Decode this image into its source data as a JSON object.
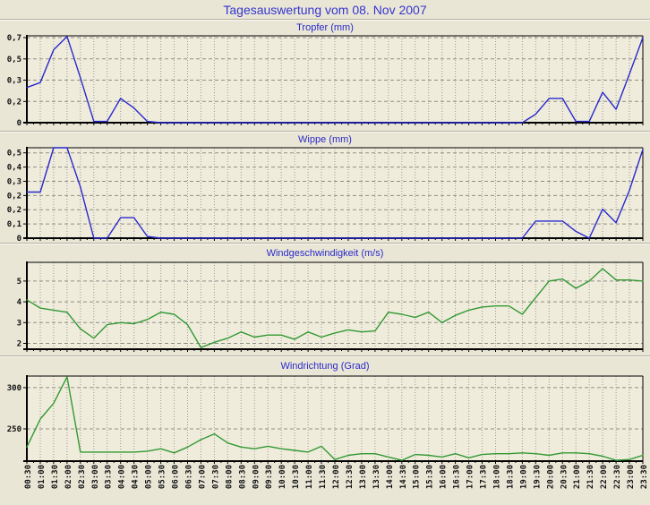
{
  "page_title": "Tagesauswertung vom 08. Nov 2007",
  "x_categories": [
    "00:30",
    "01:00",
    "01:30",
    "02:00",
    "02:30",
    "03:00",
    "03:30",
    "04:00",
    "04:30",
    "05:00",
    "05:30",
    "06:00",
    "06:30",
    "07:00",
    "07:30",
    "08:00",
    "08:30",
    "09:00",
    "09:30",
    "10:00",
    "10:30",
    "11:00",
    "11:30",
    "12:00",
    "12:30",
    "13:00",
    "13:30",
    "14:00",
    "14:30",
    "15:00",
    "15:30",
    "16:00",
    "16:30",
    "17:00",
    "17:30",
    "18:00",
    "18:30",
    "19:00",
    "19:30",
    "20:00",
    "20:30",
    "21:00",
    "21:30",
    "22:00",
    "22:30",
    "23:00",
    "23:30"
  ],
  "chart_data": [
    {
      "type": "line",
      "title": "Tropfer (mm)",
      "color": "#2929cc",
      "grid": true,
      "y_min": 0,
      "y_max": 0.715,
      "y_ticks": [
        {
          "v": 0.7,
          "label": "0,7"
        },
        {
          "v": 0.525,
          "label": "0,5"
        },
        {
          "v": 0.35,
          "label": "0,3"
        },
        {
          "v": 0.175,
          "label": "0,2"
        },
        {
          "v": 0,
          "label": "0"
        }
      ],
      "values": [
        0.29,
        0.33,
        0.6,
        0.71,
        0.37,
        0.01,
        0.01,
        0.2,
        0.12,
        0.01,
        0,
        0,
        0,
        0,
        0,
        0,
        0,
        0,
        0,
        0,
        0,
        0,
        0,
        0,
        0,
        0,
        0,
        0,
        0,
        0,
        0,
        0,
        0,
        0,
        0,
        0,
        0,
        0,
        0.07,
        0.2,
        0.2,
        0.01,
        0.01,
        0.25,
        0.11,
        0.4,
        0.7
      ]
    },
    {
      "type": "line",
      "title": "Wippe (mm)",
      "color": "#2929cc",
      "grid": true,
      "y_min": 0,
      "y_max": 0.53,
      "y_ticks": [
        {
          "v": 0.5,
          "label": "0,5"
        },
        {
          "v": 0.4167,
          "label": "0,4"
        },
        {
          "v": 0.3333,
          "label": "0,3"
        },
        {
          "v": 0.25,
          "label": "0,2"
        },
        {
          "v": 0.1667,
          "label": "0,2"
        },
        {
          "v": 0.0833,
          "label": "0,1"
        },
        {
          "v": 0,
          "label": "0"
        }
      ],
      "values": [
        0.27,
        0.27,
        0.53,
        0.53,
        0.3,
        0,
        0,
        0.12,
        0.12,
        0.01,
        0,
        0,
        0,
        0,
        0,
        0,
        0,
        0,
        0,
        0,
        0,
        0,
        0,
        0,
        0,
        0,
        0,
        0,
        0,
        0,
        0,
        0,
        0,
        0,
        0,
        0,
        0,
        0,
        0.1,
        0.1,
        0.1,
        0.04,
        0,
        0.17,
        0.09,
        0.28,
        0.52
      ]
    },
    {
      "type": "line",
      "title": "Windgeschwindigkeit (m/s)",
      "color": "#339933",
      "grid": true,
      "y_min": 1.72,
      "y_max": 5.9,
      "y_ticks": [
        {
          "v": 5,
          "label": "5"
        },
        {
          "v": 4,
          "label": "4"
        },
        {
          "v": 3,
          "label": "3"
        },
        {
          "v": 2,
          "label": "2"
        }
      ],
      "values": [
        4.1,
        3.7,
        3.6,
        3.5,
        2.7,
        2.25,
        2.9,
        3.0,
        2.95,
        3.15,
        3.5,
        3.4,
        2.9,
        1.8,
        2.05,
        2.25,
        2.55,
        2.3,
        2.4,
        2.4,
        2.2,
        2.55,
        2.3,
        2.5,
        2.65,
        2.55,
        2.6,
        3.5,
        3.4,
        3.25,
        3.5,
        3.0,
        3.35,
        3.6,
        3.75,
        3.8,
        3.8,
        3.4,
        4.2,
        5.0,
        5.1,
        4.65,
        5.0,
        5.6,
        5.05,
        5.05,
        5.0
      ]
    },
    {
      "type": "line",
      "title": "Windrichtung (Grad)",
      "color": "#339933",
      "grid": true,
      "y_min": 211,
      "y_max": 314,
      "y_ticks": [
        {
          "v": 300,
          "label": "300"
        },
        {
          "v": 250,
          "label": "250"
        }
      ],
      "values": [
        228,
        262,
        281,
        313,
        222,
        222,
        222,
        222,
        222,
        223,
        226,
        221,
        228,
        237,
        244,
        233,
        228,
        226,
        229,
        226,
        224,
        222,
        229,
        213,
        218,
        220,
        220,
        216,
        212,
        219,
        218,
        216,
        220,
        215,
        219,
        220,
        220,
        221,
        220,
        218,
        221,
        221,
        220,
        217,
        212,
        213,
        218
      ]
    }
  ]
}
